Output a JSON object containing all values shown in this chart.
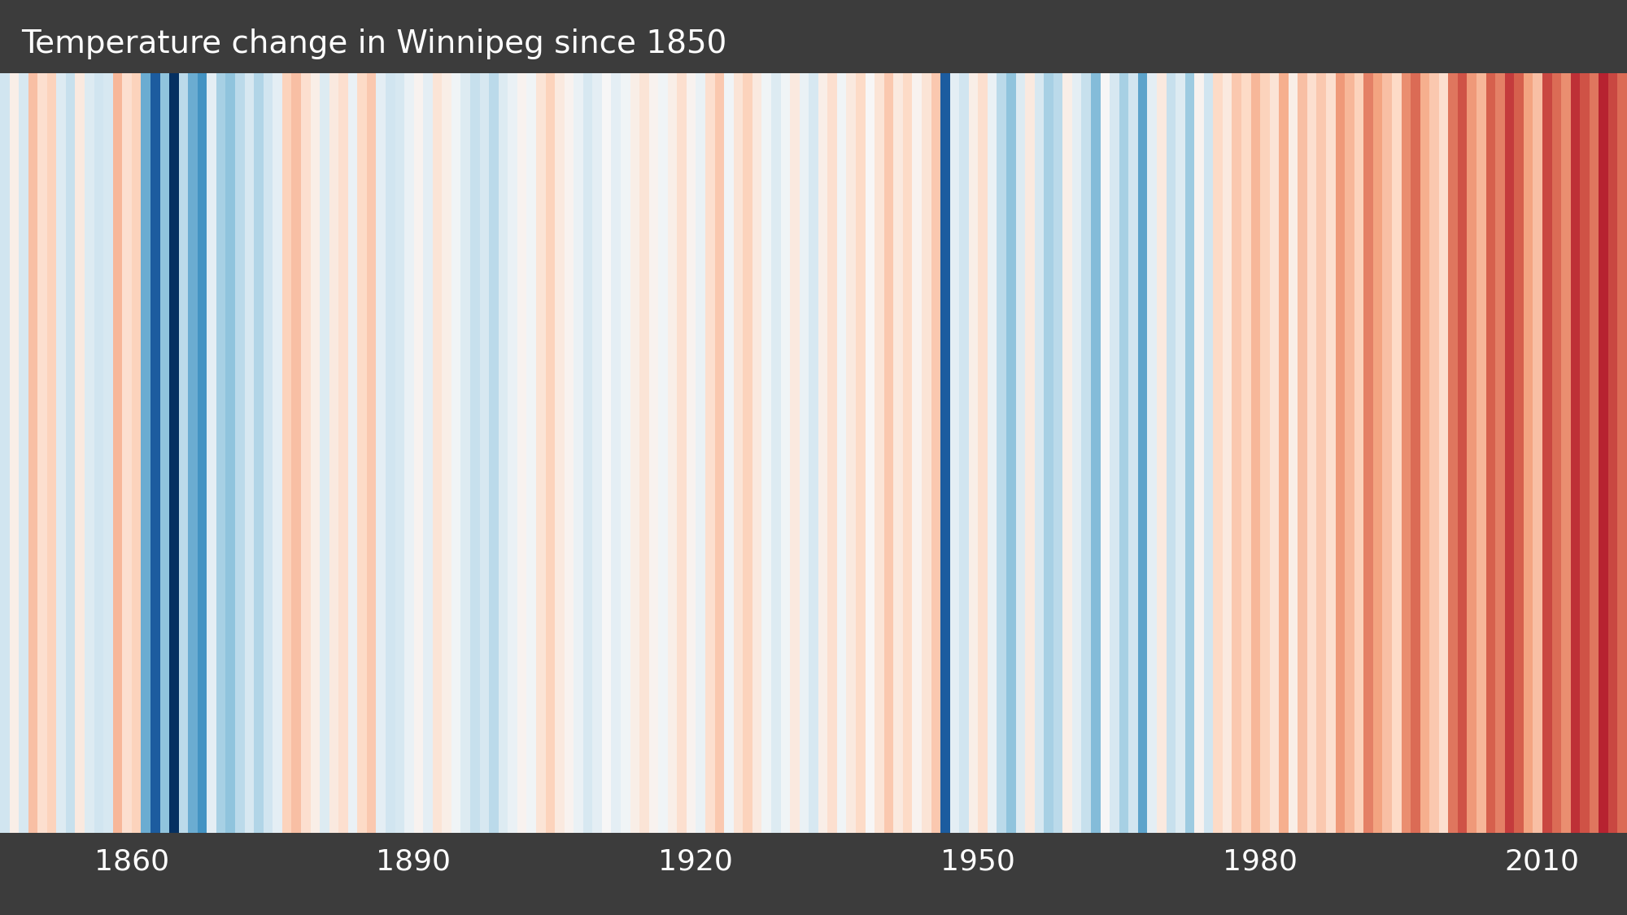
{
  "title": "Temperature change in Winnipeg since 1850",
  "title_fontsize": 28,
  "title_color": "#ffffff",
  "background_color": "#3c3c3c",
  "start_year": 1850,
  "tick_years": [
    1860,
    1890,
    1920,
    1950,
    1980,
    2010
  ],
  "tick_fontsize": 26,
  "tick_color": "#ffffff",
  "vmin": -3.0,
  "vmax": 3.0,
  "anomalies": [
    -0.6,
    0.2,
    -0.5,
    0.9,
    0.5,
    0.7,
    -0.4,
    -0.7,
    0.3,
    -0.4,
    -0.6,
    -0.5,
    0.8,
    0.4,
    0.6,
    -1.5,
    -2.5,
    -1.2,
    -3.0,
    -0.8,
    -1.5,
    -1.8,
    -0.3,
    -1.0,
    -1.2,
    -0.8,
    -0.5,
    -0.9,
    -0.6,
    -0.3,
    0.7,
    0.9,
    0.5,
    0.2,
    -0.4,
    0.3,
    0.5,
    -0.2,
    0.6,
    0.8,
    -0.3,
    -0.6,
    -0.5,
    -0.2,
    0.1,
    -0.3,
    0.4,
    0.2,
    -0.1,
    -0.4,
    -0.7,
    -0.5,
    -0.8,
    -0.4,
    -0.2,
    0.1,
    -0.1,
    0.4,
    0.7,
    0.3,
    0.1,
    -0.2,
    -0.5,
    -0.3,
    0.0,
    -0.3,
    -0.1,
    0.2,
    0.4,
    0.1,
    -0.1,
    0.2,
    0.5,
    0.1,
    -0.2,
    0.3,
    0.6,
    -0.1,
    0.4,
    0.7,
    0.2,
    -0.3,
    -0.6,
    -0.1,
    0.3,
    -0.2,
    -0.5,
    0.2,
    0.5,
    -0.1,
    0.3,
    0.6,
    0.0,
    0.4,
    0.8,
    0.3,
    0.6,
    0.1,
    0.4,
    0.8,
    -2.5,
    -0.3,
    -0.6,
    0.2,
    0.5,
    -0.2,
    -0.8,
    -1.2,
    -0.4,
    0.3,
    -0.5,
    -1.0,
    -0.8,
    0.2,
    -0.3,
    -0.7,
    -1.3,
    0.0,
    -0.5,
    -1.0,
    -0.6,
    -1.6,
    -0.3,
    0.3,
    -0.7,
    -0.4,
    -1.1,
    0.1,
    -0.6,
    0.6,
    0.3,
    0.8,
    0.6,
    1.0,
    0.7,
    0.4,
    1.1,
    0.2,
    0.9,
    0.5,
    0.8,
    0.5,
    1.3,
    1.0,
    0.7,
    1.5,
    1.2,
    0.9,
    0.6,
    1.4,
    1.7,
    1.1,
    0.8,
    0.5,
    1.6,
    1.9,
    1.3,
    1.0,
    1.8,
    1.5,
    2.1,
    1.8,
    1.2,
    0.9,
    2.0,
    1.7,
    2.4,
    2.1,
    1.5,
    1.2,
    2.2,
    1.9,
    1.6
  ]
}
